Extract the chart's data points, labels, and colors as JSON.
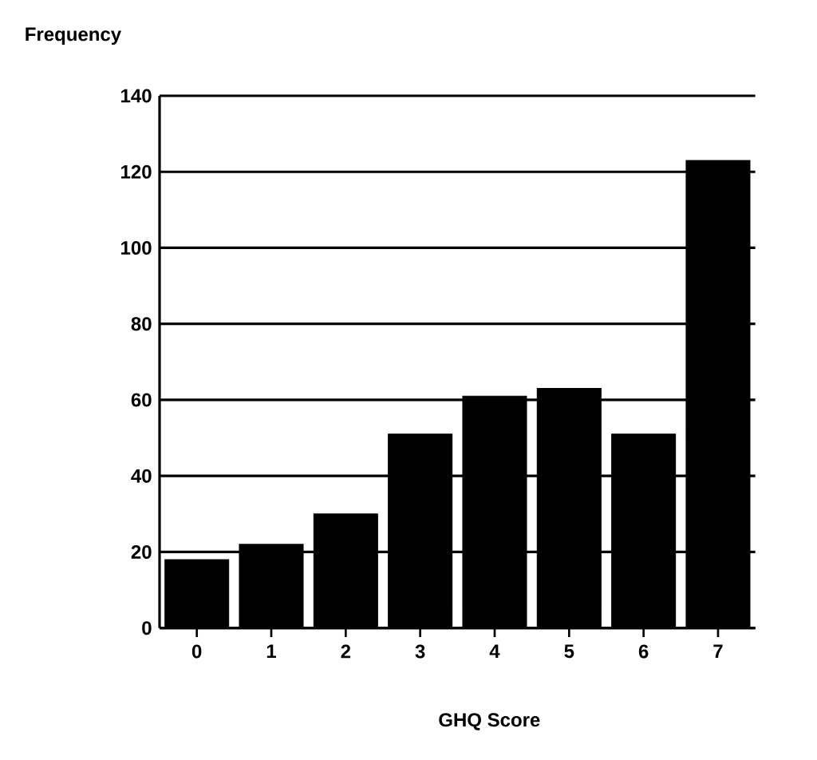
{
  "chart_data": {
    "type": "bar",
    "ylabel": "Frequency",
    "xlabel": "GHQ Score",
    "categories": [
      "0",
      "1",
      "2",
      "3",
      "4",
      "5",
      "6",
      "7"
    ],
    "values": [
      18,
      22,
      30,
      51,
      61,
      63,
      51,
      123
    ],
    "color": "#000000",
    "ylim": [
      0,
      140
    ],
    "yticks": [
      0,
      20,
      40,
      60,
      80,
      100,
      120,
      140
    ],
    "grid": "y"
  }
}
